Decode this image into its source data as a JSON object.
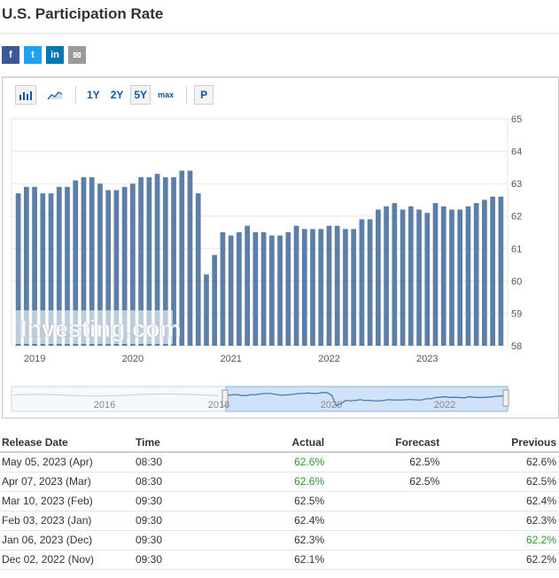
{
  "page": {
    "title": "U.S. Participation Rate"
  },
  "share": {
    "facebook": "f",
    "twitter": "t",
    "linkedin": "in",
    "email": "✉"
  },
  "toolbar": {
    "ranges": [
      "1Y",
      "2Y",
      "5Y",
      "max"
    ],
    "active_range": "5Y",
    "p_button": "P"
  },
  "colors": {
    "bar": "#5b7fa8",
    "positive": "#2b9a2b",
    "link": "#1256a0"
  },
  "chart_data": {
    "type": "bar",
    "watermark": "Investing.com",
    "y_ticks": [
      "65",
      "64",
      "63",
      "62",
      "61",
      "60",
      "59",
      "58"
    ],
    "ylim": [
      58,
      65
    ],
    "x_ticks": [
      "2019",
      "2020",
      "2021",
      "2022",
      "2023"
    ],
    "navigator_ticks": [
      "2016",
      "2018",
      "2020",
      "2022"
    ],
    "values": [
      62.7,
      62.9,
      62.9,
      62.7,
      62.7,
      62.9,
      62.9,
      63.1,
      63.2,
      63.2,
      63.0,
      62.8,
      62.8,
      62.9,
      63.0,
      63.2,
      63.2,
      63.3,
      63.2,
      63.2,
      63.4,
      63.4,
      62.7,
      60.2,
      60.8,
      61.5,
      61.4,
      61.5,
      61.7,
      61.5,
      61.5,
      61.4,
      61.4,
      61.5,
      61.7,
      61.6,
      61.6,
      61.6,
      61.7,
      61.7,
      61.6,
      61.6,
      61.9,
      61.9,
      62.2,
      62.3,
      62.4,
      62.2,
      62.3,
      62.2,
      62.1,
      62.4,
      62.3,
      62.2,
      62.2,
      62.3,
      62.4,
      62.5,
      62.6,
      62.6
    ]
  },
  "table": {
    "headers": {
      "release_date": "Release Date",
      "time": "Time",
      "actual": "Actual",
      "forecast": "Forecast",
      "previous": "Previous"
    },
    "rows": [
      {
        "date": "May 05, 2023 (Apr)",
        "time": "08:30",
        "actual": "62.6%",
        "forecast": "62.5%",
        "previous": "62.6%",
        "actual_green": true,
        "previous_green": false
      },
      {
        "date": "Apr 07, 2023 (Mar)",
        "time": "08:30",
        "actual": "62.6%",
        "forecast": "62.5%",
        "previous": "62.5%",
        "actual_green": true,
        "previous_green": false
      },
      {
        "date": "Mar 10, 2023 (Feb)",
        "time": "09:30",
        "actual": "62.5%",
        "forecast": "",
        "previous": "62.4%",
        "actual_green": false,
        "previous_green": false
      },
      {
        "date": "Feb 03, 2023 (Jan)",
        "time": "09:30",
        "actual": "62.4%",
        "forecast": "",
        "previous": "62.3%",
        "actual_green": false,
        "previous_green": false
      },
      {
        "date": "Jan 06, 2023 (Dec)",
        "time": "09:30",
        "actual": "62.3%",
        "forecast": "",
        "previous": "62.2%",
        "actual_green": false,
        "previous_green": true
      },
      {
        "date": "Dec 02, 2022 (Nov)",
        "time": "09:30",
        "actual": "62.1%",
        "forecast": "",
        "previous": "62.2%",
        "actual_green": false,
        "previous_green": false
      }
    ]
  }
}
